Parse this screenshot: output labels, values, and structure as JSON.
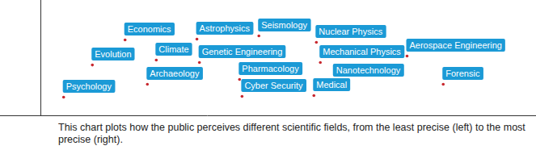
{
  "chart_data": {
    "type": "scatter",
    "caption": "This chart plots how the public perceives different scientific fields, from the least precise (left) to the most precise (right).",
    "labels": [
      "Psychology",
      "Evolution",
      "Economics",
      "Climate",
      "Archaeology",
      "Astrophysics",
      "Genetic Engineering",
      "Pharmacology",
      "Cyber Security",
      "Seismology",
      "Nuclear Physics",
      "Mechanical Physics",
      "Medical",
      "Nanotechnology",
      "Aerospace Engineering",
      "Forensic"
    ],
    "x": [
      4.6,
      10.4,
      17.0,
      23.3,
      21.5,
      31.5,
      32.0,
      40.1,
      40.6,
      44.0,
      55.6,
      56.4,
      55.1,
      59.1,
      73.9,
      81.2
    ],
    "y": [
      16.1,
      44.0,
      65.7,
      48.3,
      27.3,
      66.4,
      46.2,
      31.5,
      16.8,
      69.2,
      63.6,
      46.2,
      17.5,
      30.1,
      51.7,
      27.3
    ],
    "xlim": [
      0,
      100
    ],
    "ylim": [
      0,
      100
    ],
    "tick_labels": false,
    "color": "#c8282e"
  }
}
